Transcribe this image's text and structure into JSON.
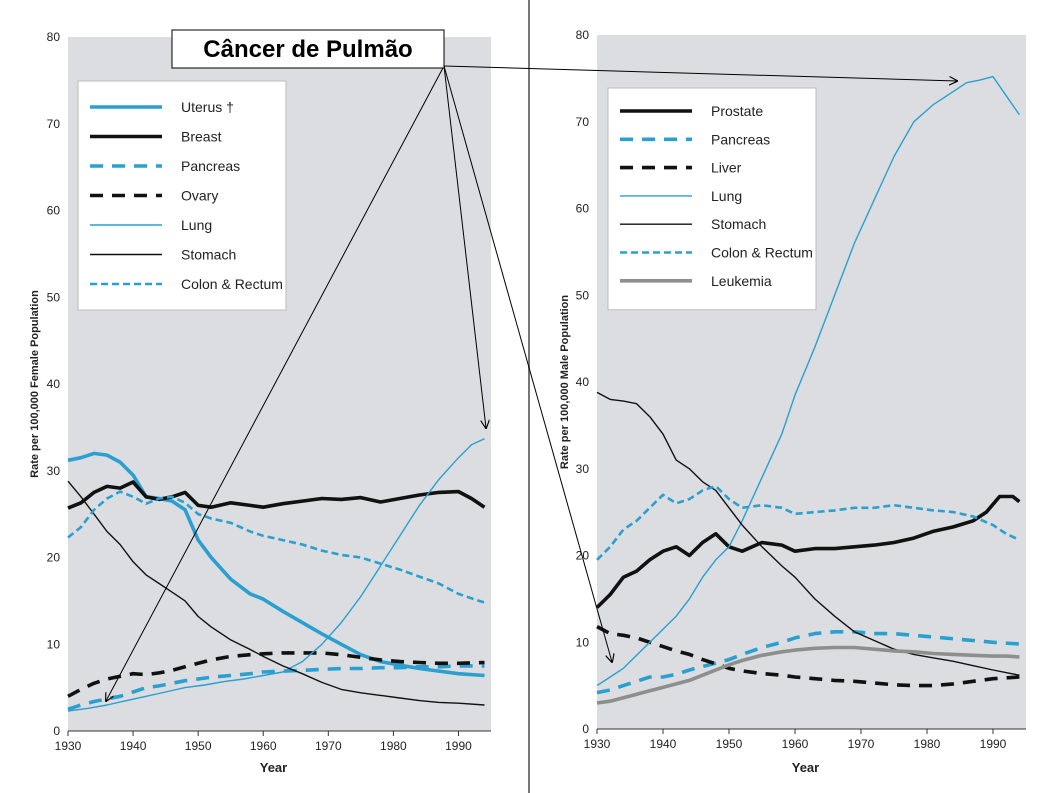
{
  "callout": {
    "text": "Câncer de Pulmão"
  },
  "colors": {
    "blue": "#2a9fd0",
    "black": "#111111",
    "gray": "#8e8e8e",
    "plot_bg": "#dcdde0",
    "legend_bg": "#ffffff",
    "divider": "#777777",
    "arrow": "#000000"
  },
  "chart_data": [
    {
      "type": "line",
      "panel": "left",
      "xlabel": "Year",
      "ylabel": "Rate per 100,000 Female Population",
      "xlim": [
        1930,
        1995
      ],
      "ylim": [
        0,
        80
      ],
      "xticks": [
        1930,
        1940,
        1950,
        1960,
        1970,
        1980,
        1990
      ],
      "yticks": [
        0,
        10,
        20,
        30,
        40,
        50,
        60,
        70,
        80
      ],
      "legend_position": "top-left",
      "series": [
        {
          "name": "Uterus †",
          "style": "thick-solid",
          "color": "blue",
          "x": [
            1930,
            1932,
            1934,
            1936,
            1938,
            1940,
            1942,
            1944,
            1946,
            1948,
            1950,
            1952,
            1955,
            1958,
            1960,
            1963,
            1966,
            1969,
            1972,
            1975,
            1978,
            1981,
            1984,
            1987,
            1990,
            1994
          ],
          "y": [
            31.2,
            31.5,
            32.0,
            31.8,
            31.0,
            29.5,
            27.0,
            26.8,
            26.5,
            25.5,
            22.0,
            20.0,
            17.5,
            15.8,
            15.2,
            13.8,
            12.5,
            11.2,
            10.0,
            8.8,
            8.0,
            7.6,
            7.2,
            6.9,
            6.6,
            6.4
          ]
        },
        {
          "name": "Breast",
          "style": "thick-solid",
          "color": "black",
          "x": [
            1930,
            1932,
            1934,
            1936,
            1938,
            1940,
            1942,
            1944,
            1946,
            1948,
            1950,
            1952,
            1955,
            1958,
            1960,
            1963,
            1966,
            1969,
            1972,
            1975,
            1978,
            1981,
            1984,
            1987,
            1990,
            1992,
            1994
          ],
          "y": [
            25.7,
            26.3,
            27.5,
            28.2,
            28.0,
            28.7,
            27.0,
            26.7,
            27.0,
            27.5,
            26.0,
            25.8,
            26.3,
            26.0,
            25.8,
            26.2,
            26.5,
            26.8,
            26.7,
            26.9,
            26.4,
            26.8,
            27.2,
            27.5,
            27.6,
            26.8,
            25.8
          ]
        },
        {
          "name": "Pancreas",
          "style": "thick-dashed",
          "color": "blue",
          "x": [
            1930,
            1932,
            1934,
            1936,
            1938,
            1940,
            1942,
            1944,
            1946,
            1948,
            1950,
            1952,
            1955,
            1958,
            1960,
            1963,
            1966,
            1969,
            1972,
            1975,
            1978,
            1981,
            1984,
            1987,
            1990,
            1992,
            1994
          ],
          "y": [
            2.5,
            3.0,
            3.4,
            3.7,
            4.0,
            4.5,
            5.0,
            5.2,
            5.5,
            5.8,
            6.0,
            6.2,
            6.4,
            6.6,
            6.8,
            6.9,
            7.0,
            7.1,
            7.2,
            7.2,
            7.3,
            7.3,
            7.4,
            7.4,
            7.5,
            7.5,
            7.5
          ]
        },
        {
          "name": "Ovary",
          "style": "thick-dashed",
          "color": "black",
          "x": [
            1930,
            1932,
            1934,
            1936,
            1938,
            1940,
            1942,
            1944,
            1946,
            1948,
            1950,
            1952,
            1955,
            1958,
            1960,
            1963,
            1966,
            1969,
            1972,
            1975,
            1978,
            1981,
            1984,
            1987,
            1990,
            1994
          ],
          "y": [
            4.0,
            4.8,
            5.5,
            6.0,
            6.3,
            6.6,
            6.5,
            6.7,
            7.0,
            7.4,
            7.8,
            8.2,
            8.6,
            8.8,
            8.9,
            9.0,
            9.0,
            9.0,
            8.8,
            8.5,
            8.2,
            8.0,
            7.9,
            7.8,
            7.8,
            7.9
          ]
        },
        {
          "name": "Lung",
          "style": "thin-solid",
          "color": "blue",
          "x": [
            1930,
            1933,
            1936,
            1939,
            1942,
            1945,
            1948,
            1951,
            1954,
            1957,
            1960,
            1963,
            1966,
            1969,
            1972,
            1975,
            1978,
            1981,
            1984,
            1987,
            1990,
            1992,
            1994
          ],
          "y": [
            2.3,
            2.6,
            3.0,
            3.5,
            4.0,
            4.5,
            5.0,
            5.3,
            5.7,
            6.0,
            6.4,
            6.8,
            8.0,
            10.0,
            12.5,
            15.5,
            19.0,
            22.5,
            26.0,
            29.0,
            31.5,
            33.0,
            33.7
          ]
        },
        {
          "name": "Stomach",
          "style": "thin-solid",
          "color": "black",
          "x": [
            1930,
            1932,
            1934,
            1936,
            1938,
            1940,
            1942,
            1944,
            1946,
            1948,
            1950,
            1952,
            1955,
            1958,
            1960,
            1963,
            1966,
            1969,
            1972,
            1975,
            1978,
            1981,
            1984,
            1987,
            1990,
            1994
          ],
          "y": [
            28.8,
            27.0,
            25.0,
            23.0,
            21.5,
            19.5,
            18.0,
            17.0,
            16.0,
            15.0,
            13.2,
            12.0,
            10.5,
            9.4,
            8.6,
            7.5,
            6.6,
            5.6,
            4.8,
            4.4,
            4.1,
            3.8,
            3.5,
            3.3,
            3.2,
            3.0
          ]
        },
        {
          "name": "Colon & Rectum",
          "style": "medium-dashed",
          "color": "blue",
          "x": [
            1930,
            1932,
            1934,
            1936,
            1938,
            1940,
            1942,
            1944,
            1946,
            1948,
            1950,
            1952,
            1955,
            1958,
            1960,
            1963,
            1966,
            1969,
            1972,
            1975,
            1978,
            1981,
            1984,
            1987,
            1990,
            1992,
            1994
          ],
          "y": [
            22.3,
            23.5,
            25.5,
            26.8,
            27.6,
            27.0,
            26.2,
            26.8,
            27.0,
            26.3,
            25.0,
            24.5,
            24.0,
            23.0,
            22.5,
            22.0,
            21.5,
            20.8,
            20.3,
            20.0,
            19.3,
            18.6,
            17.8,
            17.0,
            15.8,
            15.3,
            14.8
          ]
        }
      ]
    },
    {
      "type": "line",
      "panel": "right",
      "xlabel": "Year",
      "ylabel": "Rate per 100,000 Male Population",
      "xlim": [
        1930,
        1995
      ],
      "ylim": [
        0,
        80
      ],
      "xticks": [
        1930,
        1940,
        1950,
        1960,
        1970,
        1980,
        1990
      ],
      "yticks": [
        0,
        10,
        20,
        30,
        40,
        50,
        60,
        70,
        80
      ],
      "legend_position": "top-left",
      "series": [
        {
          "name": "Prostate",
          "style": "thick-solid",
          "color": "black",
          "x": [
            1930,
            1932,
            1934,
            1936,
            1938,
            1940,
            1942,
            1944,
            1946,
            1948,
            1950,
            1952,
            1955,
            1958,
            1960,
            1963,
            1966,
            1969,
            1972,
            1975,
            1978,
            1981,
            1984,
            1987,
            1989,
            1991,
            1993,
            1994
          ],
          "y": [
            14.0,
            15.5,
            17.5,
            18.2,
            19.5,
            20.5,
            21.0,
            20.0,
            21.5,
            22.5,
            21.0,
            20.5,
            21.5,
            21.2,
            20.5,
            20.8,
            20.8,
            21.0,
            21.2,
            21.5,
            22.0,
            22.8,
            23.3,
            24.0,
            25.0,
            26.8,
            26.8,
            26.2
          ]
        },
        {
          "name": "Pancreas",
          "style": "thick-dashed",
          "color": "blue",
          "x": [
            1930,
            1932,
            1934,
            1936,
            1938,
            1940,
            1942,
            1944,
            1946,
            1948,
            1950,
            1952,
            1955,
            1958,
            1960,
            1963,
            1966,
            1969,
            1972,
            1975,
            1978,
            1981,
            1984,
            1987,
            1990,
            1994
          ],
          "y": [
            4.2,
            4.5,
            5.0,
            5.5,
            6.0,
            6.0,
            6.3,
            6.8,
            7.2,
            7.6,
            8.0,
            8.6,
            9.4,
            10.0,
            10.5,
            11.0,
            11.2,
            11.2,
            11.0,
            11.0,
            10.8,
            10.6,
            10.4,
            10.2,
            10.0,
            9.8
          ]
        },
        {
          "name": "Liver",
          "style": "thick-dashed",
          "color": "black",
          "x": [
            1930,
            1932,
            1934,
            1936,
            1938,
            1940,
            1942,
            1944,
            1946,
            1948,
            1950,
            1952,
            1955,
            1958,
            1960,
            1963,
            1966,
            1969,
            1972,
            1975,
            1978,
            1981,
            1984,
            1987,
            1990,
            1994
          ],
          "y": [
            11.8,
            11.0,
            10.8,
            10.5,
            10.0,
            9.5,
            9.0,
            8.6,
            8.0,
            7.5,
            7.0,
            6.7,
            6.4,
            6.2,
            6.0,
            5.8,
            5.6,
            5.5,
            5.3,
            5.1,
            5.0,
            5.0,
            5.2,
            5.5,
            5.8,
            6.0
          ]
        },
        {
          "name": "Lung",
          "style": "thin-solid",
          "color": "blue",
          "x": [
            1930,
            1932,
            1934,
            1936,
            1938,
            1940,
            1942,
            1944,
            1946,
            1948,
            1950,
            1952,
            1955,
            1958,
            1960,
            1963,
            1966,
            1969,
            1972,
            1975,
            1978,
            1981,
            1984,
            1986,
            1988,
            1990,
            1992,
            1994
          ],
          "y": [
            5.0,
            6.0,
            7.0,
            8.5,
            10.0,
            11.5,
            13.0,
            15.0,
            17.5,
            19.5,
            21.0,
            24.0,
            29.0,
            34.0,
            38.5,
            44.0,
            50.0,
            56.0,
            61.0,
            66.0,
            70.0,
            72.0,
            73.5,
            74.5,
            74.8,
            75.2,
            73.0,
            70.8
          ]
        },
        {
          "name": "Stomach",
          "style": "thin-solid",
          "color": "black",
          "x": [
            1930,
            1932,
            1934,
            1936,
            1938,
            1940,
            1942,
            1944,
            1946,
            1948,
            1950,
            1952,
            1955,
            1958,
            1960,
            1963,
            1966,
            1969,
            1972,
            1975,
            1978,
            1981,
            1984,
            1987,
            1990,
            1994
          ],
          "y": [
            38.8,
            38.0,
            37.8,
            37.5,
            36.0,
            34.0,
            31.0,
            30.0,
            28.5,
            27.5,
            25.5,
            23.5,
            21.0,
            18.8,
            17.5,
            15.0,
            13.0,
            11.2,
            10.2,
            9.2,
            8.6,
            8.2,
            7.8,
            7.3,
            6.8,
            6.2
          ]
        },
        {
          "name": "Colon & Rectum",
          "style": "medium-dashed",
          "color": "blue",
          "x": [
            1930,
            1932,
            1934,
            1936,
            1938,
            1940,
            1942,
            1944,
            1946,
            1948,
            1950,
            1952,
            1955,
            1958,
            1960,
            1963,
            1966,
            1969,
            1972,
            1975,
            1978,
            1981,
            1984,
            1987,
            1990,
            1992,
            1994
          ],
          "y": [
            19.5,
            21.0,
            23.0,
            24.0,
            25.5,
            27.0,
            26.0,
            26.5,
            27.5,
            28.0,
            26.5,
            25.5,
            25.8,
            25.5,
            24.8,
            25.0,
            25.2,
            25.5,
            25.5,
            25.8,
            25.5,
            25.2,
            25.0,
            24.5,
            23.5,
            22.5,
            21.8
          ]
        },
        {
          "name": "Leukemia",
          "style": "thick-solid",
          "color": "gray",
          "x": [
            1930,
            1932,
            1934,
            1936,
            1938,
            1940,
            1942,
            1944,
            1946,
            1948,
            1950,
            1952,
            1955,
            1958,
            1960,
            1963,
            1966,
            1969,
            1972,
            1975,
            1978,
            1981,
            1984,
            1987,
            1990,
            1992,
            1994
          ],
          "y": [
            3.0,
            3.2,
            3.6,
            4.0,
            4.4,
            4.8,
            5.2,
            5.6,
            6.2,
            6.8,
            7.4,
            7.9,
            8.5,
            8.9,
            9.1,
            9.3,
            9.4,
            9.4,
            9.2,
            9.0,
            8.9,
            8.7,
            8.6,
            8.5,
            8.4,
            8.4,
            8.3
          ]
        }
      ]
    }
  ]
}
